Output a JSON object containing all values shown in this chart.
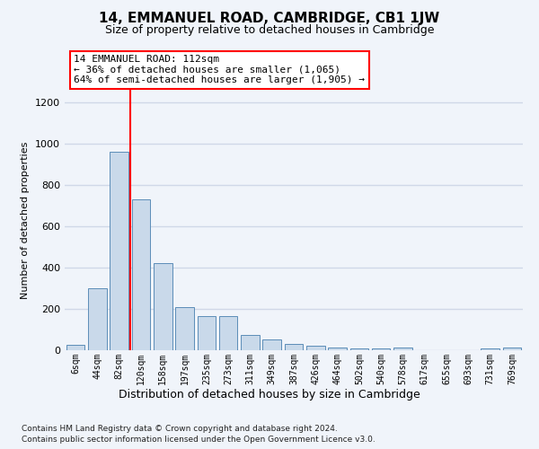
{
  "title": "14, EMMANUEL ROAD, CAMBRIDGE, CB1 1JW",
  "subtitle": "Size of property relative to detached houses in Cambridge",
  "xlabel": "Distribution of detached houses by size in Cambridge",
  "ylabel": "Number of detached properties",
  "footer_line1": "Contains HM Land Registry data © Crown copyright and database right 2024.",
  "footer_line2": "Contains public sector information licensed under the Open Government Licence v3.0.",
  "annotation_title": "14 EMMANUEL ROAD: 112sqm",
  "annotation_line2": "← 36% of detached houses are smaller (1,065)",
  "annotation_line3": "64% of semi-detached houses are larger (1,905) →",
  "bar_labels": [
    "6sqm",
    "44sqm",
    "82sqm",
    "120sqm",
    "158sqm",
    "197sqm",
    "235sqm",
    "273sqm",
    "311sqm",
    "349sqm",
    "387sqm",
    "426sqm",
    "464sqm",
    "502sqm",
    "540sqm",
    "578sqm",
    "617sqm",
    "655sqm",
    "693sqm",
    "731sqm",
    "769sqm"
  ],
  "bar_values": [
    25,
    300,
    960,
    730,
    420,
    210,
    165,
    165,
    75,
    50,
    30,
    20,
    15,
    10,
    10,
    12,
    0,
    0,
    0,
    10,
    15
  ],
  "bar_color": "#c9d9ea",
  "bar_edge_color": "#5b8db8",
  "vline_x": 2.5,
  "vline_color": "red",
  "ylim": [
    0,
    1260
  ],
  "yticks": [
    0,
    200,
    400,
    600,
    800,
    1000,
    1200
  ],
  "background_color": "#f0f4fa",
  "grid_color": "#d0d8e8",
  "annotation_box_color": "white",
  "annotation_box_edge": "red",
  "title_fontsize": 11,
  "subtitle_fontsize": 9,
  "ylabel_fontsize": 8,
  "xlabel_fontsize": 9,
  "tick_fontsize": 8,
  "annotation_fontsize": 8
}
